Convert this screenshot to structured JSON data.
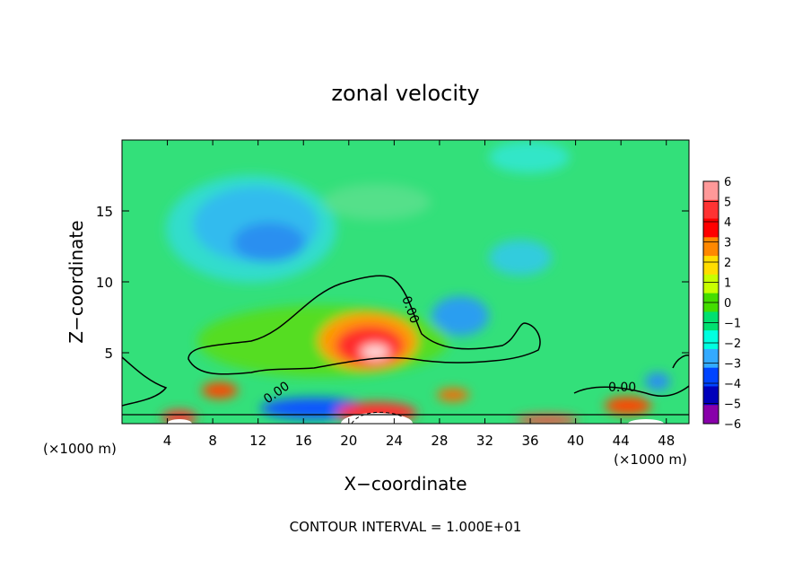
{
  "chart_data": {
    "type": "heatmap",
    "title": "zonal velocity",
    "xlabel": "X−coordinate",
    "ylabel": "Z−coordinate",
    "x_unit_left": "(×1000 m)",
    "x_unit_right": "(×1000 m)",
    "xlim": [
      0,
      50
    ],
    "ylim": [
      0,
      20
    ],
    "x_ticks": [
      4,
      8,
      12,
      16,
      20,
      24,
      28,
      32,
      36,
      40,
      44,
      48
    ],
    "y_ticks": [
      5,
      10,
      15
    ],
    "colorbar": {
      "levels": [
        6,
        5,
        4,
        3,
        2,
        1,
        0,
        -1,
        -2,
        -3,
        -4,
        -5,
        -6
      ],
      "labels": [
        "6",
        "5",
        "4",
        "3",
        "2",
        "1",
        "0",
        "−1",
        "−2",
        "−3",
        "−4",
        "−5",
        "−6"
      ]
    },
    "contour_labels": [
      "0.00",
      "0.00",
      "0.00"
    ],
    "fields": {
      "background": 0,
      "features": [
        {
          "name": "upper-left jet core",
          "x": 13,
          "z": 12.5,
          "value": -3
        },
        {
          "name": "upper jet",
          "x": 11,
          "z": 14,
          "value": -2
        },
        {
          "name": "right weak jet",
          "x": 34,
          "z": 11.8,
          "value": -2
        },
        {
          "name": "mid negative cell",
          "x": 29.5,
          "z": 7.5,
          "value": -3
        },
        {
          "name": "central positive core",
          "x": 22,
          "z": 5,
          "value": 6
        },
        {
          "name": "central positive region",
          "x": 21,
          "z": 6,
          "value": 3
        },
        {
          "name": "near-surface positive",
          "x": 20,
          "z": 1,
          "value": 6
        },
        {
          "name": "near-surface negative",
          "x": 18,
          "z": 0.8,
          "value": -5
        }
      ]
    },
    "footnote": "CONTOUR INTERVAL = 1.000E+01"
  },
  "colors": {
    "scale": [
      "#ff9999",
      "#ff3333",
      "#ff0000",
      "#ff8800",
      "#ffdd00",
      "#c8ff00",
      "#44dd00",
      "#00e070",
      "#00ffe0",
      "#33aaff",
      "#0044ff",
      "#0000bb",
      "#8800aa"
    ],
    "background_field": "#33e07a",
    "contour_line": "#000000"
  }
}
